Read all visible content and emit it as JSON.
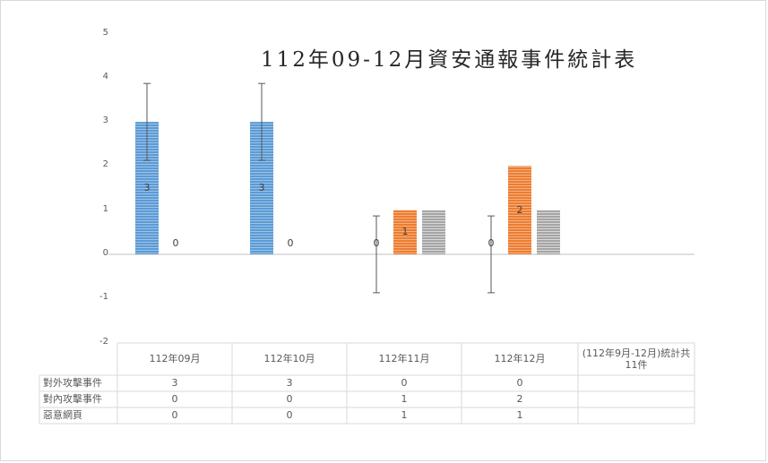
{
  "chart_data": {
    "type": "bar",
    "title": "112年09-12月資安通報事件統計表",
    "categories": [
      "112年09月",
      "112年10月",
      "112年11月",
      "112年12月",
      "(112年9月-12月)統計共11件"
    ],
    "series": [
      {
        "name": "對外攻擊事件",
        "values": [
          3,
          3,
          0,
          0,
          null
        ],
        "color": "#5b9bd5",
        "error_bars": true
      },
      {
        "name": "對內攻擊事件",
        "values": [
          0,
          0,
          1,
          2,
          null
        ],
        "color": "#ed7d31"
      },
      {
        "name": "惡意網頁",
        "values": [
          0,
          0,
          1,
          1,
          null
        ],
        "color": "#a5a5a5"
      }
    ],
    "data_labels": [
      {
        "category": 0,
        "series": 0,
        "text": "3"
      },
      {
        "category": 0,
        "series": 1,
        "text": "0"
      },
      {
        "category": 1,
        "series": 0,
        "text": "3"
      },
      {
        "category": 1,
        "series": 1,
        "text": "0"
      },
      {
        "category": 2,
        "series": 0,
        "text": "0"
      },
      {
        "category": 2,
        "series": 1,
        "text": "1"
      },
      {
        "category": 3,
        "series": 0,
        "text": "0"
      },
      {
        "category": 3,
        "series": 1,
        "text": "2"
      }
    ],
    "error_bar_amount": 0.87,
    "yticks": [
      "5",
      "4",
      "3",
      "2",
      "1",
      "0",
      "-1",
      "-2"
    ],
    "ylim": [
      -2,
      5
    ],
    "data_table": {
      "rows": [
        {
          "label": "對外攻擊事件",
          "cells": [
            "3",
            "3",
            "0",
            "0",
            ""
          ]
        },
        {
          "label": "對內攻擊事件",
          "cells": [
            "0",
            "0",
            "1",
            "2",
            ""
          ]
        },
        {
          "label": "惡意網頁",
          "cells": [
            "0",
            "0",
            "1",
            "1",
            ""
          ]
        }
      ]
    },
    "grid": false,
    "legend": "data-table"
  }
}
